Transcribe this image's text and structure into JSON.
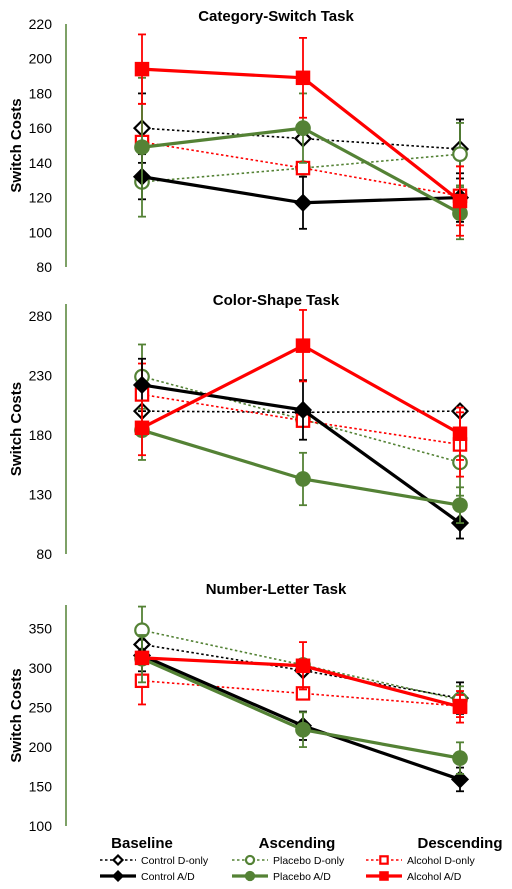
{
  "chart_data": {
    "type": "line",
    "categories": [
      "Baseline",
      "Ascending",
      "Descending"
    ],
    "ylabel": "Switch Costs",
    "series_styles": [
      {
        "name": "Control D-only",
        "color": "#000000",
        "dashed": true,
        "marker": "diamond",
        "filled": false
      },
      {
        "name": "Placebo D-only",
        "color": "#548235",
        "dashed": true,
        "marker": "circle",
        "filled": false
      },
      {
        "name": "Alcohol D-only",
        "color": "#ff0000",
        "dashed": true,
        "marker": "square",
        "filled": false
      },
      {
        "name": "Control A/D",
        "color": "#000000",
        "dashed": false,
        "marker": "diamond",
        "filled": true
      },
      {
        "name": "Placebo A/D",
        "color": "#548235",
        "dashed": false,
        "marker": "circle",
        "filled": true
      },
      {
        "name": "Alcohol A/D",
        "color": "#ff0000",
        "dashed": false,
        "marker": "square",
        "filled": true
      }
    ],
    "panels": [
      {
        "title": "Category-Switch Task",
        "ylim": [
          80,
          220
        ],
        "yticks": [
          80,
          100,
          120,
          140,
          160,
          180,
          200,
          220
        ],
        "series": [
          {
            "name": "Control D-only",
            "values": [
              160,
              154,
              148
            ],
            "errors": [
              20,
              0,
              17
            ]
          },
          {
            "name": "Placebo D-only",
            "values": [
              129,
              137,
              145
            ],
            "errors": [
              0,
              0,
              18
            ]
          },
          {
            "name": "Alcohol D-only",
            "values": [
              152,
              137,
              121
            ],
            "errors": [
              22,
              0,
              17
            ]
          },
          {
            "name": "Control A/D",
            "values": [
              132,
              117,
              120
            ],
            "errors": [
              13,
              15,
              14
            ]
          },
          {
            "name": "Placebo A/D",
            "values": [
              149,
              160,
              111
            ],
            "errors": [
              40,
              20,
              15
            ]
          },
          {
            "name": "Alcohol A/D",
            "values": [
              194,
              189,
              118
            ],
            "errors": [
              20,
              23,
              20
            ]
          }
        ]
      },
      {
        "title": "Color-Shape Task",
        "ylim": [
          80,
          290
        ],
        "yticks": [
          80,
          130,
          180,
          230,
          280
        ],
        "series": [
          {
            "name": "Control D-only",
            "values": [
              200,
              199,
              200
            ],
            "errors": [
              0,
              0,
              0
            ]
          },
          {
            "name": "Placebo D-only",
            "values": [
              229,
              193,
              157
            ],
            "errors": [
              27,
              0,
              28
            ]
          },
          {
            "name": "Alcohol D-only",
            "values": [
              214,
              192,
              172
            ],
            "errors": [
              26,
              0,
              27
            ]
          },
          {
            "name": "Control A/D",
            "values": [
              222,
              201,
              106
            ],
            "errors": [
              22,
              25,
              13
            ]
          },
          {
            "name": "Placebo A/D",
            "values": [
              184,
              143,
              121
            ],
            "errors": [
              25,
              22,
              15
            ]
          },
          {
            "name": "Alcohol A/D",
            "values": [
              186,
              255,
              181
            ],
            "errors": [
              23,
              30,
              22
            ]
          }
        ]
      },
      {
        "title": "Number-Letter Task",
        "ylim": [
          100,
          380
        ],
        "yticks": [
          100,
          150,
          200,
          250,
          300,
          350
        ],
        "series": [
          {
            "name": "Control D-only",
            "values": [
              330,
              297,
              262
            ],
            "errors": [
              0,
              0,
              20
            ]
          },
          {
            "name": "Placebo D-only",
            "values": [
              348,
              304,
              260
            ],
            "errors": [
              30,
              0,
              17
            ]
          },
          {
            "name": "Alcohol D-only",
            "values": [
              284,
              268,
              252
            ],
            "errors": [
              30,
              0,
              14
            ]
          },
          {
            "name": "Control A/D",
            "values": [
              316,
              227,
              159
            ],
            "errors": [
              20,
              18,
              15
            ]
          },
          {
            "name": "Placebo A/D",
            "values": [
              312,
              222,
              186
            ],
            "errors": [
              30,
              22,
              20
            ]
          },
          {
            "name": "Alcohol A/D",
            "values": [
              313,
              303,
              251
            ],
            "errors": [
              0,
              30,
              20
            ]
          }
        ]
      }
    ],
    "legend": {
      "position": "bottom",
      "rows": [
        [
          "Control D-only",
          "Placebo D-only",
          "Alcohol D-only"
        ],
        [
          "Control A/D",
          "Placebo A/D",
          "Alcohol A/D"
        ]
      ]
    }
  }
}
